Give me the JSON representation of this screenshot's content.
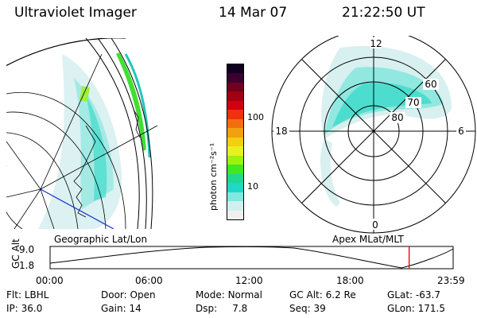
{
  "header": {
    "title": "Ultraviolet Imager",
    "date": "14 Mar 07",
    "time": "21:22:50 UT"
  },
  "colorbar": {
    "unit_label": "photon cm⁻²s⁻¹",
    "ticks": [
      "100",
      "10"
    ],
    "colors": [
      "#100020",
      "#3a0030",
      "#700020",
      "#a00010",
      "#d00010",
      "#f03010",
      "#f07010",
      "#f0a010",
      "#f0d010",
      "#e8f020",
      "#a0f010",
      "#40e820",
      "#20d890",
      "#20d8c8",
      "#80e8e0",
      "#d0f0f0",
      "#f0f0f0"
    ]
  },
  "polar_map": {
    "mlt_labels": [
      "12",
      "18",
      "6",
      "0"
    ],
    "lat_labels": [
      "60",
      "70",
      "80"
    ]
  },
  "map_labels": {
    "left": "Geographic Lat/Lon",
    "right": "Apex MLat/MLT"
  },
  "timeline": {
    "axis_label": "GC Alt",
    "y_ticks": [
      "9.0",
      "1.8"
    ],
    "x_ticks": [
      "00:00",
      "06:00",
      "12:00",
      "18:00",
      "23:59"
    ],
    "current_marker_hours": 21.38,
    "marker_color": "#ff0000"
  },
  "status": {
    "row1": [
      {
        "label": "Flt:",
        "value": "LBHL"
      },
      {
        "label": "Door:",
        "value": "Open"
      },
      {
        "label": "Mode:",
        "value": "Normal"
      },
      {
        "label": "GC Alt:",
        "value": "6.2 Re"
      },
      {
        "label": "GLat:",
        "value": "-63.7"
      }
    ],
    "row2": [
      {
        "label": "IP:",
        "value": "36.0"
      },
      {
        "label": "Gain:",
        "value": "14"
      },
      {
        "label": "Dsp:",
        "value": "7.8"
      },
      {
        "label": "Seq:",
        "value": "39"
      },
      {
        "label": "GLon:",
        "value": "171.5"
      }
    ]
  }
}
